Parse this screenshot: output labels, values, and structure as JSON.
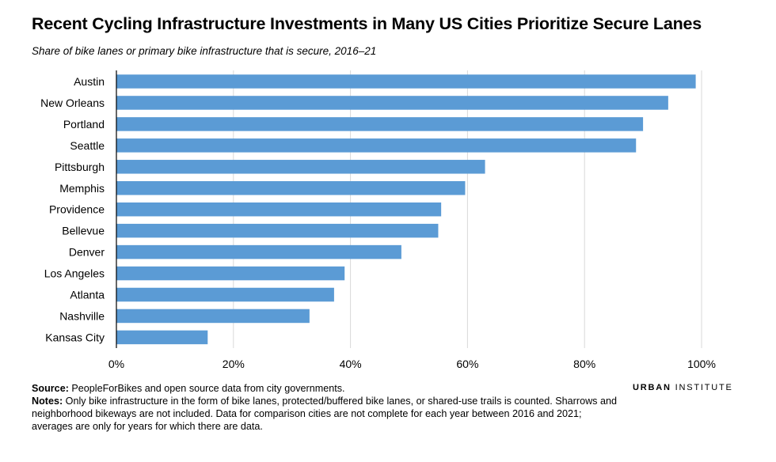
{
  "header": {
    "title": "Recent Cycling Infrastructure Investments in Many US Cities Prioritize Secure Lanes",
    "subtitle": "Share of bike lanes or primary bike infrastructure that is secure, 2016–21"
  },
  "chart_data": {
    "type": "bar",
    "orientation": "horizontal",
    "categories": [
      "Austin",
      "New Orleans",
      "Portland",
      "Seattle",
      "Pittsburgh",
      "Memphis",
      "Providence",
      "Bellevue",
      "Denver",
      "Los Angeles",
      "Atlanta",
      "Nashville",
      "Kansas City"
    ],
    "values": [
      99,
      94.3,
      90,
      88.8,
      63,
      59.6,
      55.5,
      55,
      48.7,
      39,
      37.2,
      33,
      15.6
    ],
    "xlim": [
      0,
      100
    ],
    "xticks": [
      0,
      20,
      40,
      60,
      80,
      100
    ],
    "xtick_labels": [
      "0%",
      "20%",
      "40%",
      "60%",
      "80%",
      "100%"
    ],
    "bar_color": "#5b9bd5",
    "grid": "vertical",
    "xlabel": "",
    "ylabel": ""
  },
  "footer": {
    "source_label": "Source:",
    "source_text": " PeopleForBikes and open source data from city governments.",
    "notes_label": "Notes:",
    "notes_text": " Only bike infrastructure in the form of bike lanes, protected/buffered bike lanes, or shared-use trails is counted. Sharrows and neighborhood bikeways are not included. Data for comparison cities are not complete for each year between 2016 and 2021; averages are only for years for which there are data."
  },
  "logo": {
    "word1": "URBAN",
    "word2": " INSTITUTE"
  }
}
